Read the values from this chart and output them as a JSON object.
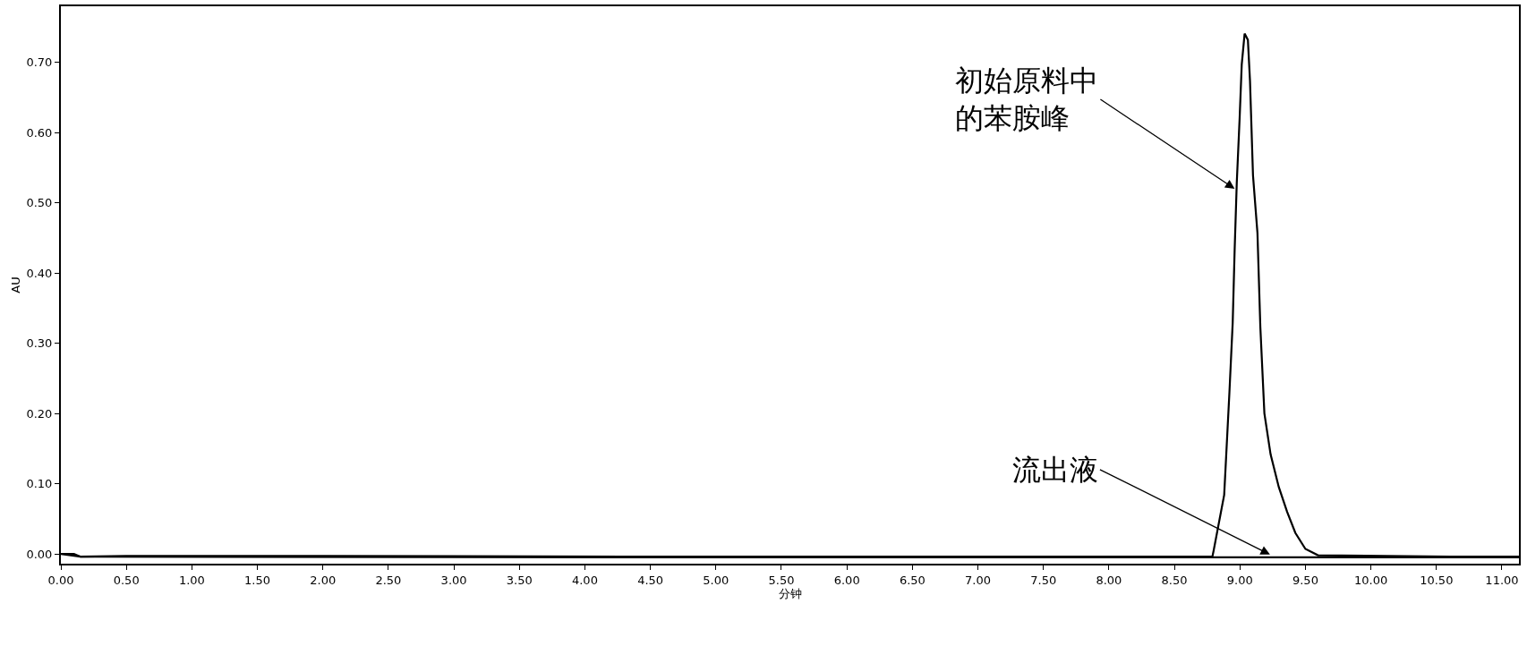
{
  "chart_data": {
    "type": "line",
    "xlabel": "分钟",
    "ylabel": "AU",
    "series": [
      {
        "color": "#000000",
        "x": [
          0,
          0.1,
          0.15,
          0.5,
          2.0,
          4.3,
          8.79,
          8.8,
          8.88,
          8.92,
          8.945,
          8.96,
          8.976,
          8.998,
          9.014,
          9.036,
          9.061,
          9.077,
          9.1,
          9.134,
          9.156,
          9.187,
          9.234,
          9.297,
          9.36,
          9.423,
          9.5,
          9.596,
          10.6,
          11.13
        ],
        "values": [
          0.0,
          0.0,
          -0.004,
          -0.003,
          -0.003,
          -0.004,
          -0.004,
          0.005,
          0.084,
          0.23,
          0.329,
          0.434,
          0.528,
          0.621,
          0.697,
          0.741,
          0.732,
          0.674,
          0.539,
          0.457,
          0.323,
          0.2,
          0.142,
          0.095,
          0.06,
          0.03,
          0.007,
          -0.002,
          -0.004,
          -0.004
        ]
      },
      {
        "color": "#000000",
        "x": [
          0,
          0.15,
          4.3,
          11.13
        ],
        "values": [
          0.0,
          -0.004,
          -0.005,
          -0.005
        ]
      }
    ],
    "xlim": [
      0,
      11.13
    ],
    "ylim": [
      -0.014,
      0.78
    ],
    "xticks": [
      {
        "value": 0,
        "label": "0.00"
      },
      {
        "value": 0.5,
        "label": "0.50"
      },
      {
        "value": 1,
        "label": "1.00"
      },
      {
        "value": 1.5,
        "label": "1.50"
      },
      {
        "value": 2,
        "label": "2.00"
      },
      {
        "value": 2.5,
        "label": "2.50"
      },
      {
        "value": 3,
        "label": "3.00"
      },
      {
        "value": 3.5,
        "label": "3.50"
      },
      {
        "value": 4,
        "label": "4.00"
      },
      {
        "value": 4.5,
        "label": "4.50"
      },
      {
        "value": 5,
        "label": "5.00"
      },
      {
        "value": 5.5,
        "label": "5.50"
      },
      {
        "value": 6,
        "label": "6.00"
      },
      {
        "value": 6.5,
        "label": "6.50"
      },
      {
        "value": 7,
        "label": "7.00"
      },
      {
        "value": 7.5,
        "label": "7.50"
      },
      {
        "value": 8,
        "label": "8.00"
      },
      {
        "value": 8.5,
        "label": "8.50"
      },
      {
        "value": 9,
        "label": "9.00"
      },
      {
        "value": 9.5,
        "label": "9.50"
      },
      {
        "value": 10,
        "label": "10.00"
      },
      {
        "value": 10.5,
        "label": "10.50"
      },
      {
        "value": 11,
        "label": "11.00"
      }
    ],
    "yticks": [
      {
        "value": 0,
        "label": "0.00"
      },
      {
        "value": 0.1,
        "label": "0.10"
      },
      {
        "value": 0.2,
        "label": "0.20"
      },
      {
        "value": 0.3,
        "label": "0.30"
      },
      {
        "value": 0.4,
        "label": "0.40"
      },
      {
        "value": 0.5,
        "label": "0.50"
      },
      {
        "value": 0.6,
        "label": "0.60"
      },
      {
        "value": 0.7,
        "label": "0.70"
      }
    ],
    "annotations": [
      {
        "text": "初始原料中的苯胺峰",
        "x": 8.96,
        "y": 0.52
      },
      {
        "text": "流出液",
        "x": 9.23,
        "y": -0.001
      }
    ],
    "marker": "none",
    "line_style": "solid"
  }
}
